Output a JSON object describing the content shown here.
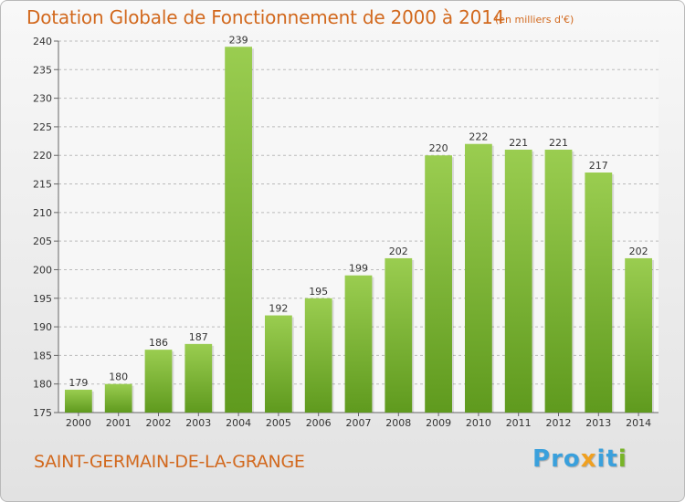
{
  "header": {
    "title": "Dotation Globale de Fonctionnement de 2000 à 2014",
    "subtitle": "(en milliers d'€)"
  },
  "footer": {
    "place": "SAINT-GERMAIN-DE-LA-GRANGE",
    "logo": [
      "P",
      "r",
      "o",
      "x",
      "i",
      "t",
      "i"
    ]
  },
  "colors": {
    "title": "#d2691e",
    "bar_light": "#9acd50",
    "bar_dark": "#5f9a1e",
    "grid": "#bbbbbb",
    "logo": [
      "#3aa0dc",
      "#3aa0dc",
      "#3aa0dc",
      "#f0a020",
      "#3aa0dc",
      "#3aa0dc",
      "#78b428"
    ]
  },
  "chart_data": {
    "type": "bar",
    "categories": [
      "2000",
      "2001",
      "2002",
      "2003",
      "2004",
      "2005",
      "2006",
      "2007",
      "2008",
      "2009",
      "2010",
      "2011",
      "2012",
      "2013",
      "2014"
    ],
    "values": [
      179,
      180,
      186,
      187,
      239,
      192,
      195,
      199,
      202,
      220,
      222,
      221,
      221,
      217,
      202
    ],
    "ylim": [
      175,
      240
    ],
    "yticks": [
      175,
      180,
      185,
      190,
      195,
      200,
      205,
      210,
      215,
      220,
      225,
      230,
      235,
      240
    ],
    "grid": true,
    "xlabel": "",
    "ylabel": ""
  }
}
